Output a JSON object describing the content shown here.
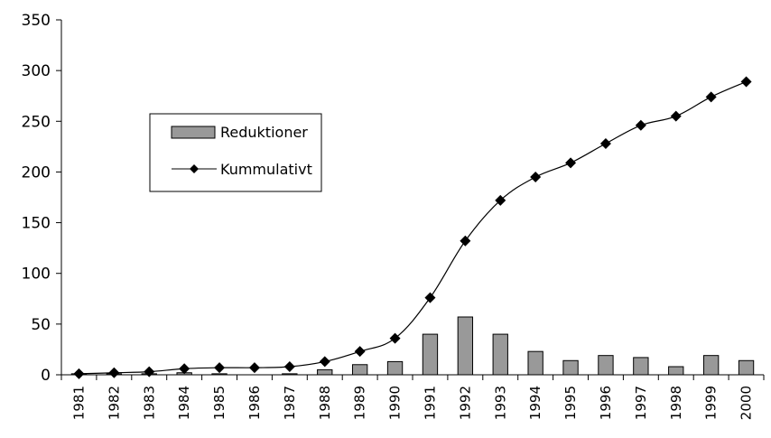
{
  "chart_data": {
    "type": "bar",
    "categories": [
      "1981",
      "1982",
      "1983",
      "1984",
      "1985",
      "1986",
      "1987",
      "1988",
      "1989",
      "1990",
      "1991",
      "1992",
      "1993",
      "1994",
      "1995",
      "1996",
      "1997",
      "1998",
      "1999",
      "2000"
    ],
    "series": [
      {
        "name": "Reduktioner",
        "type": "bar",
        "color": "#999999",
        "values": [
          1,
          1,
          1,
          2,
          1,
          0,
          1,
          5,
          10,
          13,
          40,
          57,
          40,
          23,
          14,
          19,
          17,
          8,
          19,
          14
        ]
      },
      {
        "name": "Kummulativt",
        "type": "line",
        "marker": "diamond",
        "color": "#000000",
        "values": [
          1,
          2,
          3,
          6,
          7,
          7,
          8,
          13,
          23,
          36,
          76,
          132,
          172,
          195,
          209,
          228,
          246,
          255,
          274,
          289
        ]
      }
    ],
    "yticks": [
      "0",
      "50",
      "100",
      "150",
      "200",
      "250",
      "300",
      "350"
    ],
    "ylim": [
      0,
      350
    ],
    "legend_position": "upper-left",
    "grid": false
  }
}
